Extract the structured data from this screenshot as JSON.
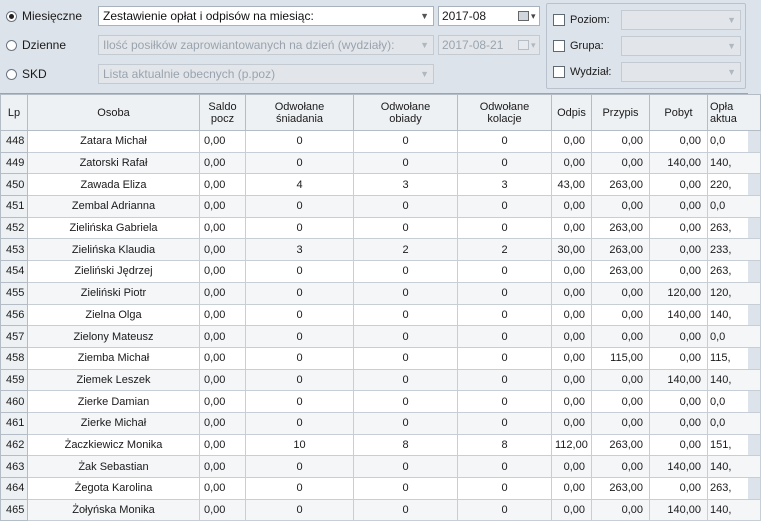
{
  "filters": {
    "modes": [
      {
        "label": "Miesięczne",
        "checked": true,
        "report": "Zestawienie opłat i odpisów na miesiąc:",
        "report_enabled": true,
        "date": "2017-08",
        "date_enabled": true
      },
      {
        "label": "Dzienne",
        "checked": false,
        "report": "Ilość posiłków zaprowiantowanych na dzień (wydziały):",
        "report_enabled": false,
        "date": "2017-08-21",
        "date_enabled": false
      },
      {
        "label": "SKD",
        "checked": false,
        "report": "Lista aktualnie obecnych (p.poz)",
        "report_enabled": false
      }
    ],
    "checkboxes": [
      {
        "label": "Poziom:",
        "value": ""
      },
      {
        "label": "Grupa:",
        "value": ""
      },
      {
        "label": "Wydział:",
        "value": ""
      }
    ]
  },
  "table": {
    "columns": [
      {
        "l1": "Lp",
        "l2": ""
      },
      {
        "l1": "Osoba",
        "l2": ""
      },
      {
        "l1": "Saldo",
        "l2": "pocz"
      },
      {
        "l1": "Odwołane",
        "l2": "śniadania"
      },
      {
        "l1": "Odwołane",
        "l2": "obiady"
      },
      {
        "l1": "Odwołane",
        "l2": "kolacje"
      },
      {
        "l1": "Odpis",
        "l2": ""
      },
      {
        "l1": "Przypis",
        "l2": ""
      },
      {
        "l1": "Pobyt",
        "l2": ""
      },
      {
        "l1": "Opła",
        "l2": "aktua"
      }
    ],
    "rows": [
      [
        "448",
        "Zatara Michał",
        "0,00",
        "0",
        "0",
        "0",
        "0,00",
        "0,00",
        "0,00",
        "0,0"
      ],
      [
        "449",
        "Zatorski Rafał",
        "0,00",
        "0",
        "0",
        "0",
        "0,00",
        "0,00",
        "140,00",
        "140,"
      ],
      [
        "450",
        "Zawada Eliza",
        "0,00",
        "4",
        "3",
        "3",
        "43,00",
        "263,00",
        "0,00",
        "220,"
      ],
      [
        "451",
        "Zembal Adrianna",
        "0,00",
        "0",
        "0",
        "0",
        "0,00",
        "0,00",
        "0,00",
        "0,0"
      ],
      [
        "452",
        "Zielińska Gabriela",
        "0,00",
        "0",
        "0",
        "0",
        "0,00",
        "263,00",
        "0,00",
        "263,"
      ],
      [
        "453",
        "Zielińska Klaudia",
        "0,00",
        "3",
        "2",
        "2",
        "30,00",
        "263,00",
        "0,00",
        "233,"
      ],
      [
        "454",
        "Zieliński Jędrzej",
        "0,00",
        "0",
        "0",
        "0",
        "0,00",
        "263,00",
        "0,00",
        "263,"
      ],
      [
        "455",
        "Zieliński Piotr",
        "0,00",
        "0",
        "0",
        "0",
        "0,00",
        "0,00",
        "120,00",
        "120,"
      ],
      [
        "456",
        "Zielna Olga",
        "0,00",
        "0",
        "0",
        "0",
        "0,00",
        "0,00",
        "140,00",
        "140,"
      ],
      [
        "457",
        "Zielony Mateusz",
        "0,00",
        "0",
        "0",
        "0",
        "0,00",
        "0,00",
        "0,00",
        "0,0"
      ],
      [
        "458",
        "Ziemba Michał",
        "0,00",
        "0",
        "0",
        "0",
        "0,00",
        "115,00",
        "0,00",
        "115,"
      ],
      [
        "459",
        "Ziemek Leszek",
        "0,00",
        "0",
        "0",
        "0",
        "0,00",
        "0,00",
        "140,00",
        "140,"
      ],
      [
        "460",
        "Zierke Damian",
        "0,00",
        "0",
        "0",
        "0",
        "0,00",
        "0,00",
        "0,00",
        "0,0"
      ],
      [
        "461",
        "Zierke Michał",
        "0,00",
        "0",
        "0",
        "0",
        "0,00",
        "0,00",
        "0,00",
        "0,0"
      ],
      [
        "462",
        "Żaczkiewicz Monika",
        "0,00",
        "10",
        "8",
        "8",
        "112,00",
        "263,00",
        "0,00",
        "151,"
      ],
      [
        "463",
        "Żak Sebastian",
        "0,00",
        "0",
        "0",
        "0",
        "0,00",
        "0,00",
        "140,00",
        "140,"
      ],
      [
        "464",
        "Żegota Karolina",
        "0,00",
        "0",
        "0",
        "0",
        "0,00",
        "263,00",
        "0,00",
        "263,"
      ],
      [
        "465",
        "Żołyńska Monika",
        "0,00",
        "0",
        "0",
        "0",
        "0,00",
        "0,00",
        "140,00",
        "140,"
      ]
    ]
  }
}
